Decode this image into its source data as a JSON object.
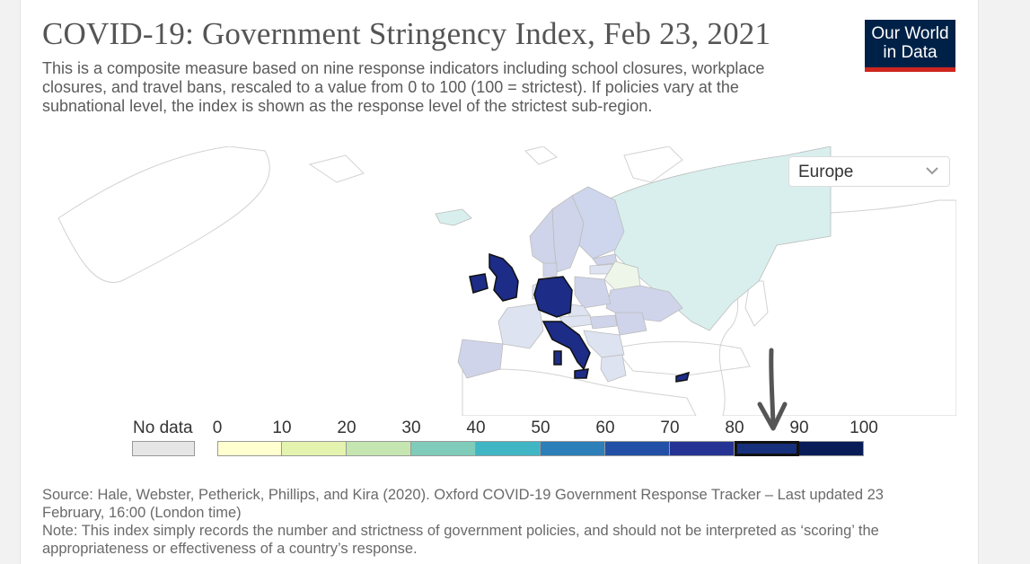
{
  "title": "COVID-19: Government Stringency Index, Feb 23, 2021",
  "subtitle": "This is a composite measure based on nine response indicators including school closures, workplace closures, and travel bans, rescaled to a value from 0 to 100 (100 = strictest). If policies vary at the subnational level, the index is shown as the response level of the strictest sub-region.",
  "logo": {
    "line1": "Our World",
    "line2": "in Data"
  },
  "region_select": {
    "value": "Europe",
    "icon": "chevron-down-icon"
  },
  "legend": {
    "nodata_label": "No data",
    "nodata_color": "#e6e6e6",
    "ticks": [
      "0",
      "10",
      "20",
      "30",
      "40",
      "50",
      "60",
      "70",
      "80",
      "90",
      "100"
    ],
    "colors": [
      "#ffffd0",
      "#e4f3ad",
      "#c5e6b0",
      "#7fccba",
      "#40b6c4",
      "#2c7fb8",
      "#2150a6",
      "#253494",
      "#16307c",
      "#081d58"
    ],
    "highlighted_bin": "80–90"
  },
  "colors": {
    "high_stringency": "#1c2c87",
    "russia": "#d8efed",
    "medium": "#cfd4ea",
    "light": "#dde3f0",
    "belarus": "#eef6ea"
  },
  "footer": {
    "source": "Source: Hale, Webster, Petherick, Phillips, and Kira (2020). Oxford COVID-19 Government Response Tracker – Last updated 23 February, 16:00 (London time)",
    "note": "Note: This index simply records the number and strictness of government policies, and should not be interpreted as ‘scoring’ the appropriateness or effectiveness of a country’s response."
  }
}
